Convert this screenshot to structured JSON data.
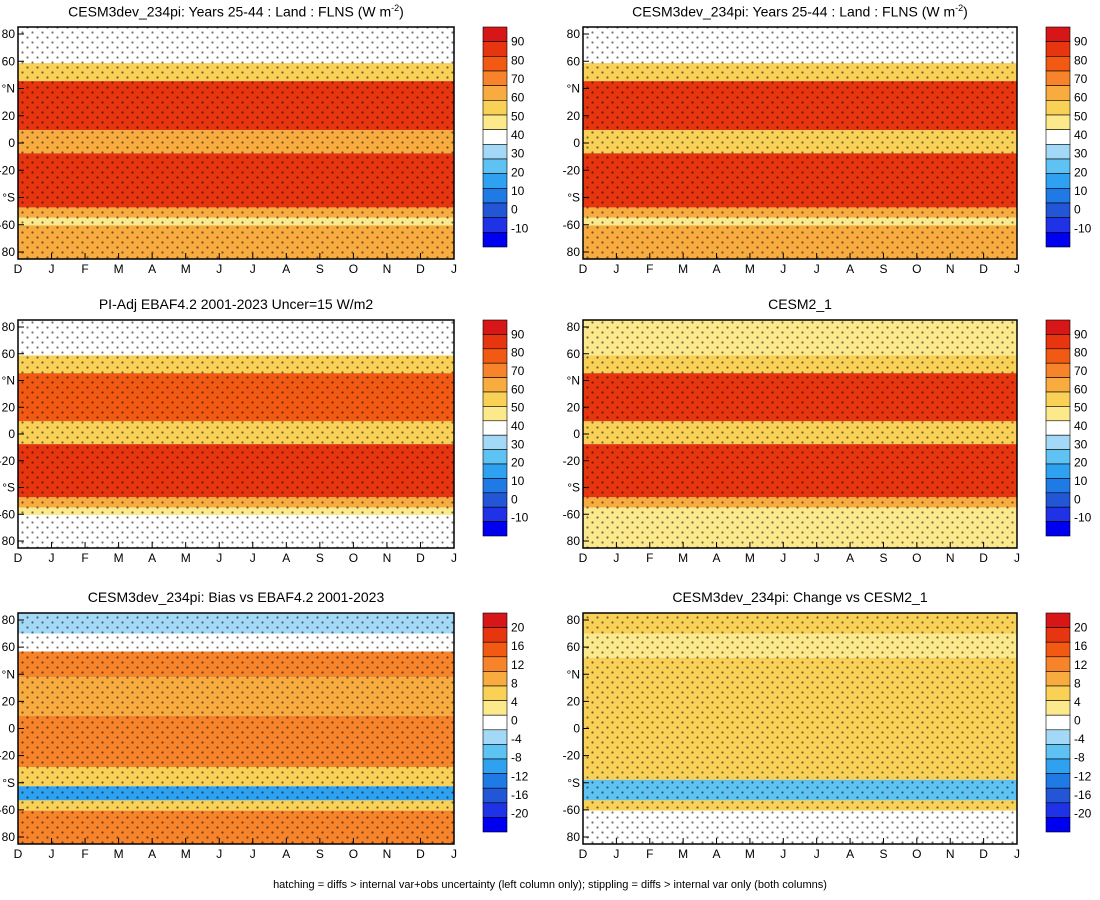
{
  "footer": "hatching = diffs > internal var+obs uncertainty (left column only); stippling = diffs > internal var only (both columns)",
  "colorbars": {
    "abs": {
      "labels": [
        "90",
        "80",
        "70",
        "60",
        "50",
        "40",
        "30",
        "20",
        "10",
        "0",
        "-10"
      ],
      "colors": [
        "#d71717",
        "#e7350f",
        "#f25a14",
        "#f7842a",
        "#f8ab3e",
        "#f9d156",
        "#fbe98c",
        "#ffffff",
        "#a3d9f6",
        "#5ec2f2",
        "#2ea2f0",
        "#1f7ae6",
        "#2356d6",
        "#1f32e6",
        "#0000f0"
      ]
    },
    "diff": {
      "labels": [
        "20",
        "16",
        "12",
        "8",
        "4",
        "0",
        "-4",
        "-8",
        "-12",
        "-16",
        "-20"
      ],
      "colors": [
        "#d71717",
        "#e7350f",
        "#f25a14",
        "#f7842a",
        "#f8ab3e",
        "#f9d156",
        "#fbe98c",
        "#ffffff",
        "#a3d9f6",
        "#5ec2f2",
        "#2ea2f0",
        "#1f7ae6",
        "#2356d6",
        "#1f32e6",
        "#0000f0"
      ]
    }
  },
  "chart_data": [
    {
      "type": "heatmap",
      "title": "CESM3dev_234pi: Years 25-44 : Land : FLNS (W m",
      "title_sup": "-2",
      "title_end": ")",
      "x_ticks": [
        "D",
        "J",
        "F",
        "M",
        "A",
        "M",
        "J",
        "J",
        "A",
        "S",
        "O",
        "N",
        "D",
        "J"
      ],
      "y_ticks": [
        "80",
        "60",
        "°N",
        "20",
        "0",
        "-20",
        "°S",
        "-60",
        "80"
      ],
      "colorbar": "abs",
      "bands": [
        {
          "lat": [
            62,
            90
          ],
          "value": 25
        },
        {
          "lat": [
            48,
            62
          ],
          "value": 50
        },
        {
          "lat": [
            10,
            48
          ],
          "value": 85
        },
        {
          "lat": [
            -8,
            10
          ],
          "value": 55
        },
        {
          "lat": [
            -50,
            -8
          ],
          "value": 85
        },
        {
          "lat": [
            -58,
            -50
          ],
          "value": 55
        },
        {
          "lat": [
            -64,
            -58
          ],
          "value": 40
        },
        {
          "lat": [
            -90,
            -64
          ],
          "value": 60
        }
      ]
    },
    {
      "type": "heatmap",
      "title": "CESM3dev_234pi: Years 25-44 : Land : FLNS (W m",
      "title_sup": "-2",
      "title_end": ")",
      "x_ticks": [
        "D",
        "J",
        "F",
        "M",
        "A",
        "M",
        "J",
        "J",
        "A",
        "S",
        "O",
        "N",
        "D",
        "J"
      ],
      "y_ticks": [
        "80",
        "60",
        "°N",
        "20",
        "0",
        "-20",
        "°S",
        "-60",
        "80"
      ],
      "colorbar": "abs",
      "bands": [
        {
          "lat": [
            62,
            90
          ],
          "value": 25
        },
        {
          "lat": [
            48,
            62
          ],
          "value": 50
        },
        {
          "lat": [
            10,
            48
          ],
          "value": 85
        },
        {
          "lat": [
            -8,
            10
          ],
          "value": 50
        },
        {
          "lat": [
            -50,
            -8
          ],
          "value": 85
        },
        {
          "lat": [
            -58,
            -50
          ],
          "value": 55
        },
        {
          "lat": [
            -64,
            -58
          ],
          "value": 40
        },
        {
          "lat": [
            -90,
            -64
          ],
          "value": 55
        }
      ]
    },
    {
      "type": "heatmap",
      "title": "PI-Adj EBAF4.2 2001-2023 Uncer=15 W/m2",
      "x_ticks": [
        "D",
        "J",
        "F",
        "M",
        "A",
        "M",
        "J",
        "J",
        "A",
        "S",
        "O",
        "N",
        "D",
        "J"
      ],
      "y_ticks": [
        "80",
        "60",
        "°N",
        "20",
        "0",
        "-20",
        "°S",
        "-60",
        "80"
      ],
      "colorbar": "abs",
      "bands": [
        {
          "lat": [
            62,
            90
          ],
          "value": 30
        },
        {
          "lat": [
            48,
            62
          ],
          "value": 50
        },
        {
          "lat": [
            10,
            48
          ],
          "value": 80
        },
        {
          "lat": [
            -8,
            10
          ],
          "value": 42
        },
        {
          "lat": [
            -50,
            -8
          ],
          "value": 85
        },
        {
          "lat": [
            -58,
            -50
          ],
          "value": 55
        },
        {
          "lat": [
            -64,
            -58
          ],
          "value": 40
        },
        {
          "lat": [
            -90,
            -64
          ],
          "value": 25
        }
      ]
    },
    {
      "type": "heatmap",
      "title": "CESM2_1",
      "x_ticks": [
        "D",
        "J",
        "F",
        "M",
        "A",
        "M",
        "J",
        "J",
        "A",
        "S",
        "O",
        "N",
        "D",
        "J"
      ],
      "y_ticks": [
        "80",
        "60",
        "°N",
        "20",
        "0",
        "-20",
        "°S",
        "-60",
        "80"
      ],
      "colorbar": "abs",
      "bands": [
        {
          "lat": [
            62,
            90
          ],
          "value": 35
        },
        {
          "lat": [
            48,
            62
          ],
          "value": 50
        },
        {
          "lat": [
            10,
            48
          ],
          "value": 85
        },
        {
          "lat": [
            -8,
            10
          ],
          "value": 50
        },
        {
          "lat": [
            -50,
            -8
          ],
          "value": 85
        },
        {
          "lat": [
            -58,
            -50
          ],
          "value": 55
        },
        {
          "lat": [
            -64,
            -58
          ],
          "value": 40
        },
        {
          "lat": [
            -90,
            -64
          ],
          "value": 40
        }
      ]
    },
    {
      "type": "heatmap",
      "title": "CESM3dev_234pi: Bias vs EBAF4.2 2001-2023",
      "x_ticks": [
        "D",
        "J",
        "F",
        "M",
        "A",
        "M",
        "J",
        "J",
        "A",
        "S",
        "O",
        "N",
        "D",
        "J"
      ],
      "y_ticks": [
        "80",
        "60",
        "°N",
        "20",
        "0",
        "-20",
        "°S",
        "-60",
        "80"
      ],
      "colorbar": "diff",
      "bands": [
        {
          "lat": [
            74,
            90
          ],
          "value": -10
        },
        {
          "lat": [
            60,
            74
          ],
          "value": -4
        },
        {
          "lat": [
            40,
            60
          ],
          "value": 10
        },
        {
          "lat": [
            10,
            40
          ],
          "value": 6
        },
        {
          "lat": [
            -30,
            10
          ],
          "value": 10
        },
        {
          "lat": [
            -45,
            -30
          ],
          "value": 4
        },
        {
          "lat": [
            -56,
            -45
          ],
          "value": -16
        },
        {
          "lat": [
            -64,
            -56
          ],
          "value": 2
        },
        {
          "lat": [
            -90,
            -64
          ],
          "value": 12
        }
      ]
    },
    {
      "type": "heatmap",
      "title": "CESM3dev_234pi: Change vs CESM2_1",
      "x_ticks": [
        "D",
        "J",
        "F",
        "M",
        "A",
        "M",
        "J",
        "J",
        "A",
        "S",
        "O",
        "N",
        "D",
        "J"
      ],
      "y_ticks": [
        "80",
        "60",
        "°N",
        "20",
        "0",
        "-20",
        "°S",
        "-60",
        "80"
      ],
      "colorbar": "diff",
      "bands": [
        {
          "lat": [
            74,
            90
          ],
          "value": 1
        },
        {
          "lat": [
            55,
            74
          ],
          "value": -3
        },
        {
          "lat": [
            30,
            55
          ],
          "value": 2
        },
        {
          "lat": [
            -30,
            30
          ],
          "value": 4
        },
        {
          "lat": [
            -40,
            -30
          ],
          "value": 3
        },
        {
          "lat": [
            -56,
            -40
          ],
          "value": -12
        },
        {
          "lat": [
            -64,
            -56
          ],
          "value": 2
        },
        {
          "lat": [
            -90,
            -64
          ],
          "value": -4
        }
      ]
    }
  ]
}
